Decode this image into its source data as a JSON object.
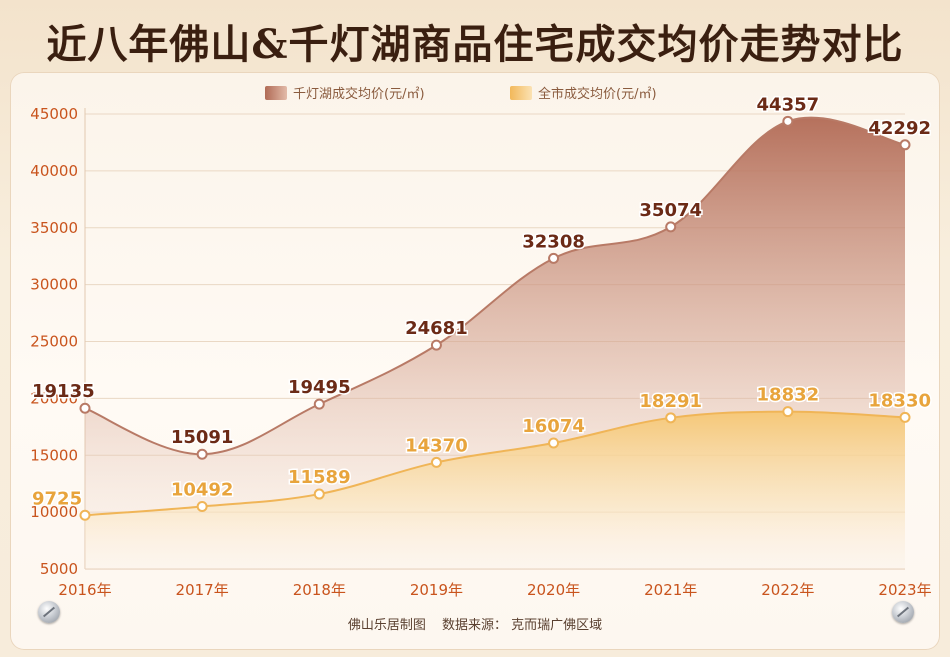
{
  "title": "近八年佛山&千灯湖商品住宅成交均价走势对比",
  "footer": {
    "producer": "佛山乐居制图",
    "source": "数据来源： 克而瑞广佛区域"
  },
  "colors": {
    "qiandenghu": "#b06a55",
    "qiandenghu_label": "#6b2a16",
    "city": "#f2b85a",
    "city_label": "#e8a43c",
    "axis_text": "#c9541d",
    "grid": "#ead8c4"
  },
  "chart_data": {
    "type": "area",
    "title": "近八年佛山&千灯湖商品住宅成交均价走势对比",
    "xlabel": "",
    "ylabel": "",
    "categories": [
      "2016年",
      "2017年",
      "2018年",
      "2019年",
      "2020年",
      "2021年",
      "2022年",
      "2023年"
    ],
    "ylim": [
      5000,
      45000
    ],
    "yticks": [
      5000,
      10000,
      15000,
      20000,
      25000,
      30000,
      35000,
      40000,
      45000
    ],
    "grid": true,
    "legend_position": "top-center",
    "series": [
      {
        "name": "千灯湖成交均价(元/㎡)",
        "values": [
          19135,
          15091,
          19495,
          24681,
          32308,
          35074,
          44357,
          42292
        ],
        "labels": [
          "19135",
          "15091",
          "19495",
          "24681",
          "32308",
          "35074",
          "44357",
          "42292"
        ]
      },
      {
        "name": "全市成交均价(元/㎡)",
        "values": [
          9725,
          10492,
          11589,
          14370,
          16074,
          18291,
          18832,
          18330
        ],
        "labels": [
          "9725",
          "10492",
          "11589",
          "14370",
          "16074",
          "18291",
          "18832",
          "18330"
        ]
      }
    ]
  }
}
